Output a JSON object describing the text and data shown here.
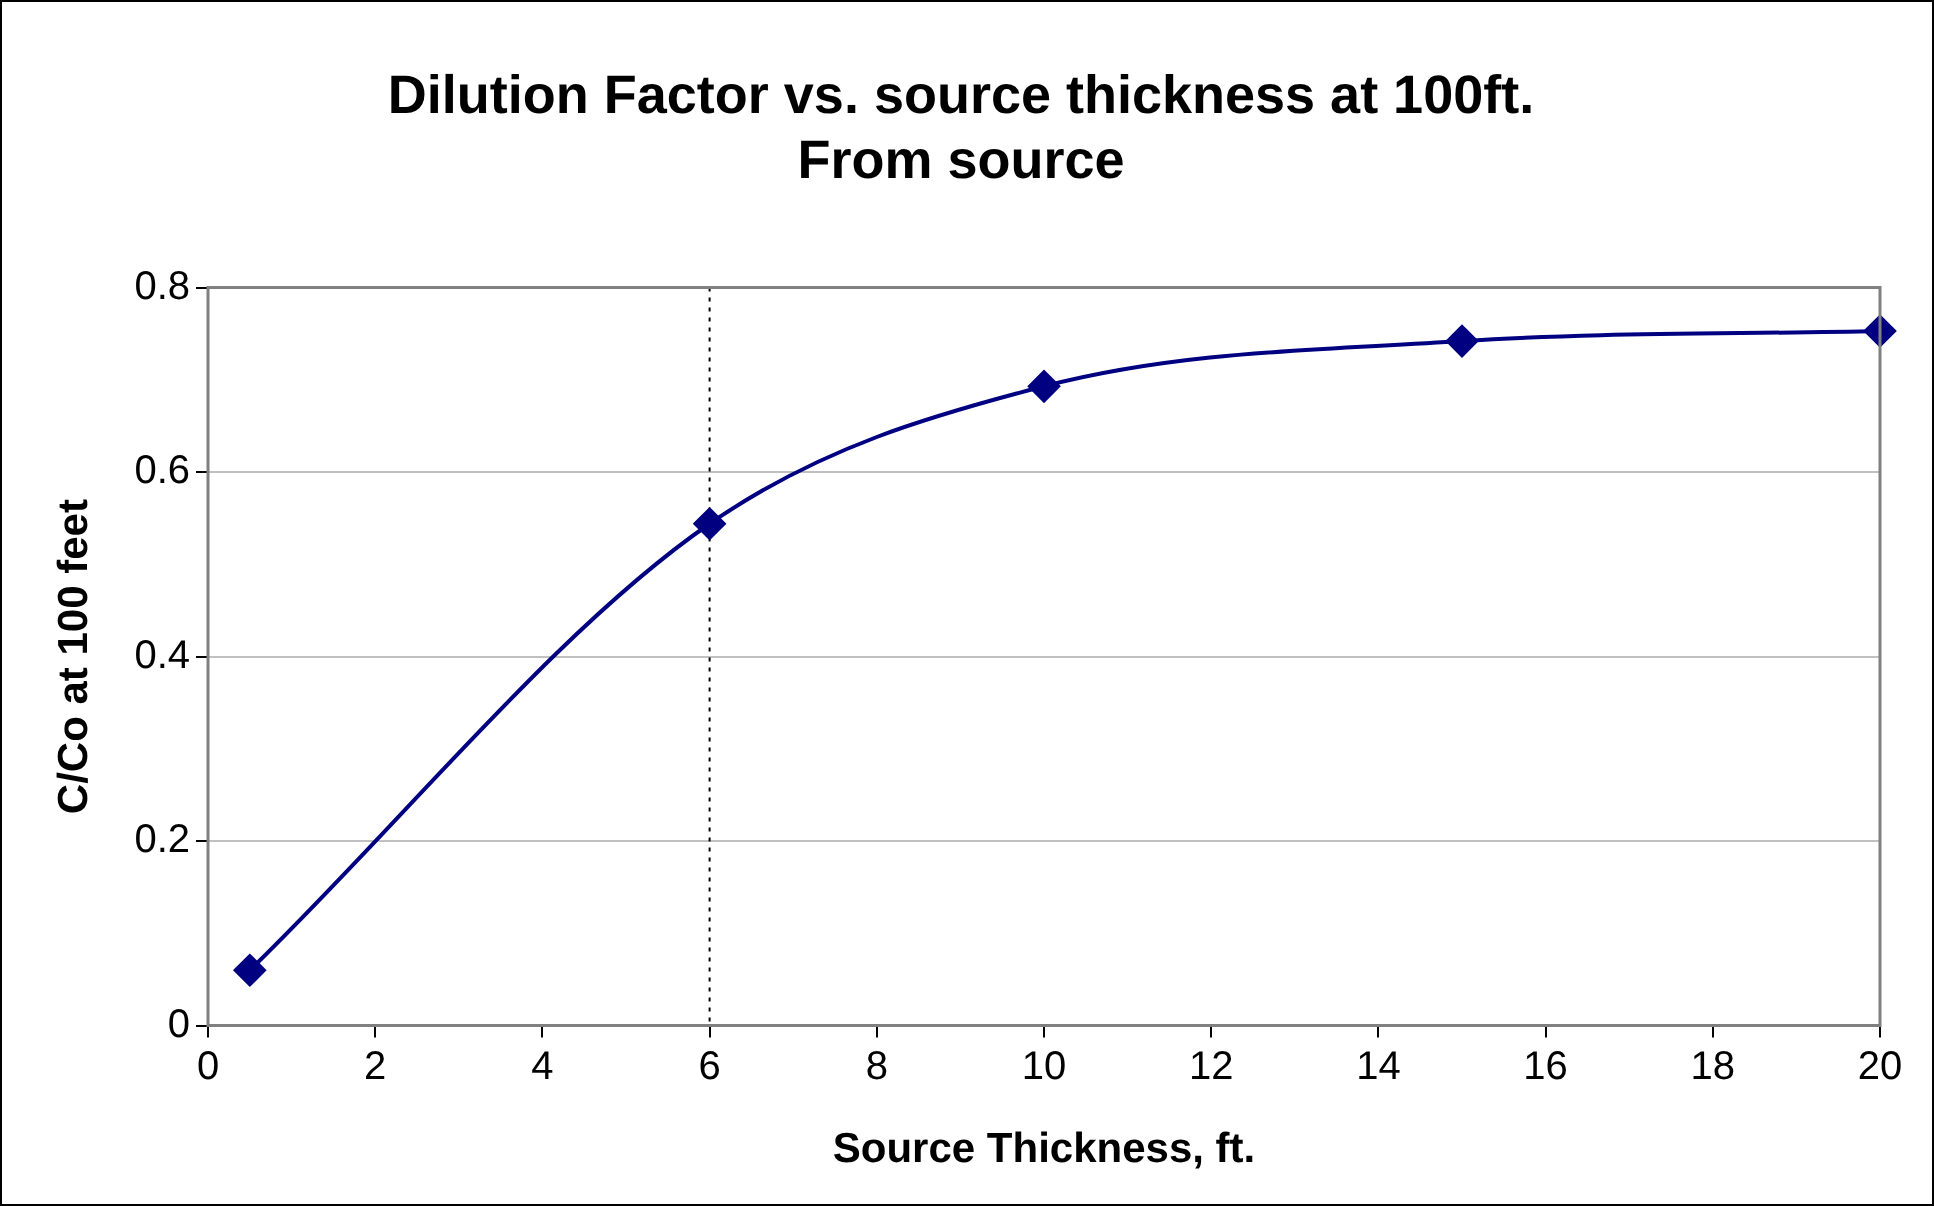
{
  "chart_data": {
    "type": "line",
    "title": "Dilution Factor vs. source thickness at 100ft.\nFrom source",
    "xlabel": "Source Thickness, ft.",
    "ylabel": "C/Co at 100 feet",
    "x": [
      0.5,
      6,
      10,
      15,
      20
    ],
    "series": [
      {
        "color": "#000080",
        "values": [
          0.06,
          0.544,
          0.693,
          0.742,
          0.753
        ]
      }
    ],
    "xlim": [
      0,
      20
    ],
    "xticks": [
      0,
      2,
      4,
      6,
      8,
      10,
      12,
      14,
      16,
      18,
      20
    ],
    "ylim": [
      0,
      0.8
    ],
    "yticks": [
      0,
      0.2,
      0.4,
      0.6,
      0.8
    ],
    "grid": "y",
    "legend": false,
    "marker": "diamond",
    "line_style": "solid",
    "ref_lines": [
      {
        "axis": "x",
        "value": 6,
        "color": "#000000",
        "line_style": "dotted"
      }
    ]
  }
}
